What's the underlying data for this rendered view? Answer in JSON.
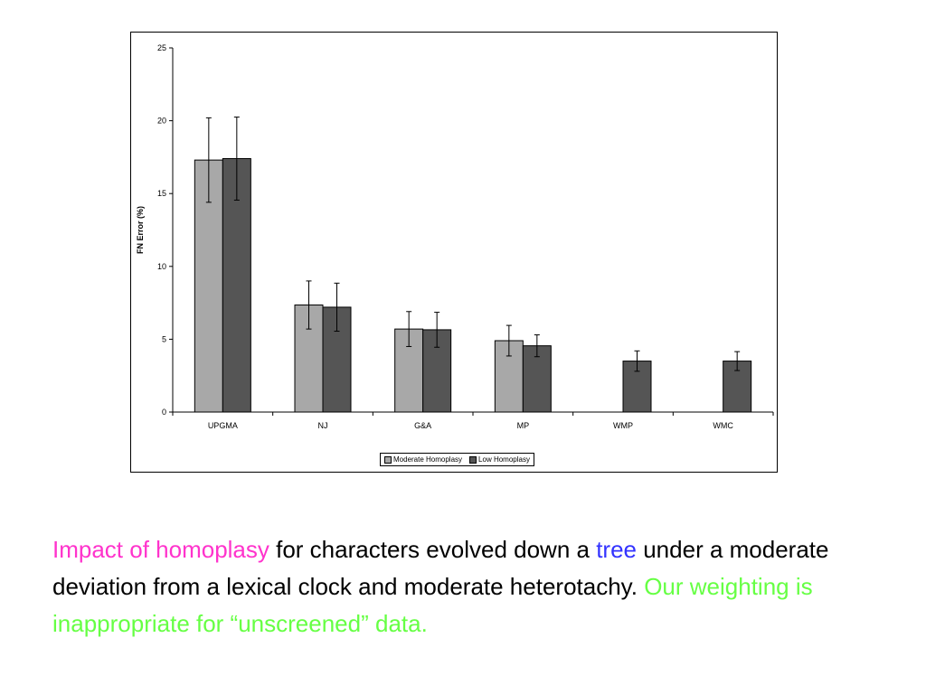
{
  "colors": {
    "moderate": "#a8a8a8",
    "low": "#555555",
    "pink": "#ff33cc",
    "blue": "#3333ff",
    "green": "#66ff44"
  },
  "chart_data": {
    "type": "bar",
    "ylabel": "FN Error (%)",
    "ylim": [
      0,
      25
    ],
    "yticks": [
      0,
      5,
      10,
      15,
      20,
      25
    ],
    "categories": [
      "UPGMA",
      "NJ",
      "G&A",
      "MP",
      "WMP",
      "WMC"
    ],
    "series": [
      {
        "name": "Moderate Homoplasy",
        "values": [
          17.3,
          7.35,
          5.7,
          4.9,
          null,
          null
        ],
        "error": [
          2.9,
          1.65,
          1.2,
          1.05,
          null,
          null
        ]
      },
      {
        "name": "Low Homoplasy",
        "values": [
          17.4,
          7.2,
          5.65,
          4.55,
          3.5,
          3.5
        ],
        "error": [
          2.85,
          1.65,
          1.2,
          0.75,
          0.7,
          0.65
        ]
      }
    ],
    "legend": "bottom-center",
    "grid": false
  },
  "caption": {
    "part1": "Impact of homoplasy",
    "part2": " for characters evolved down a ",
    "part3": "tree",
    "part4": " under a moderate deviation from a lexical clock and moderate heterotachy.  ",
    "part5": "Our weighting is inappropriate for “unscreened” data."
  }
}
